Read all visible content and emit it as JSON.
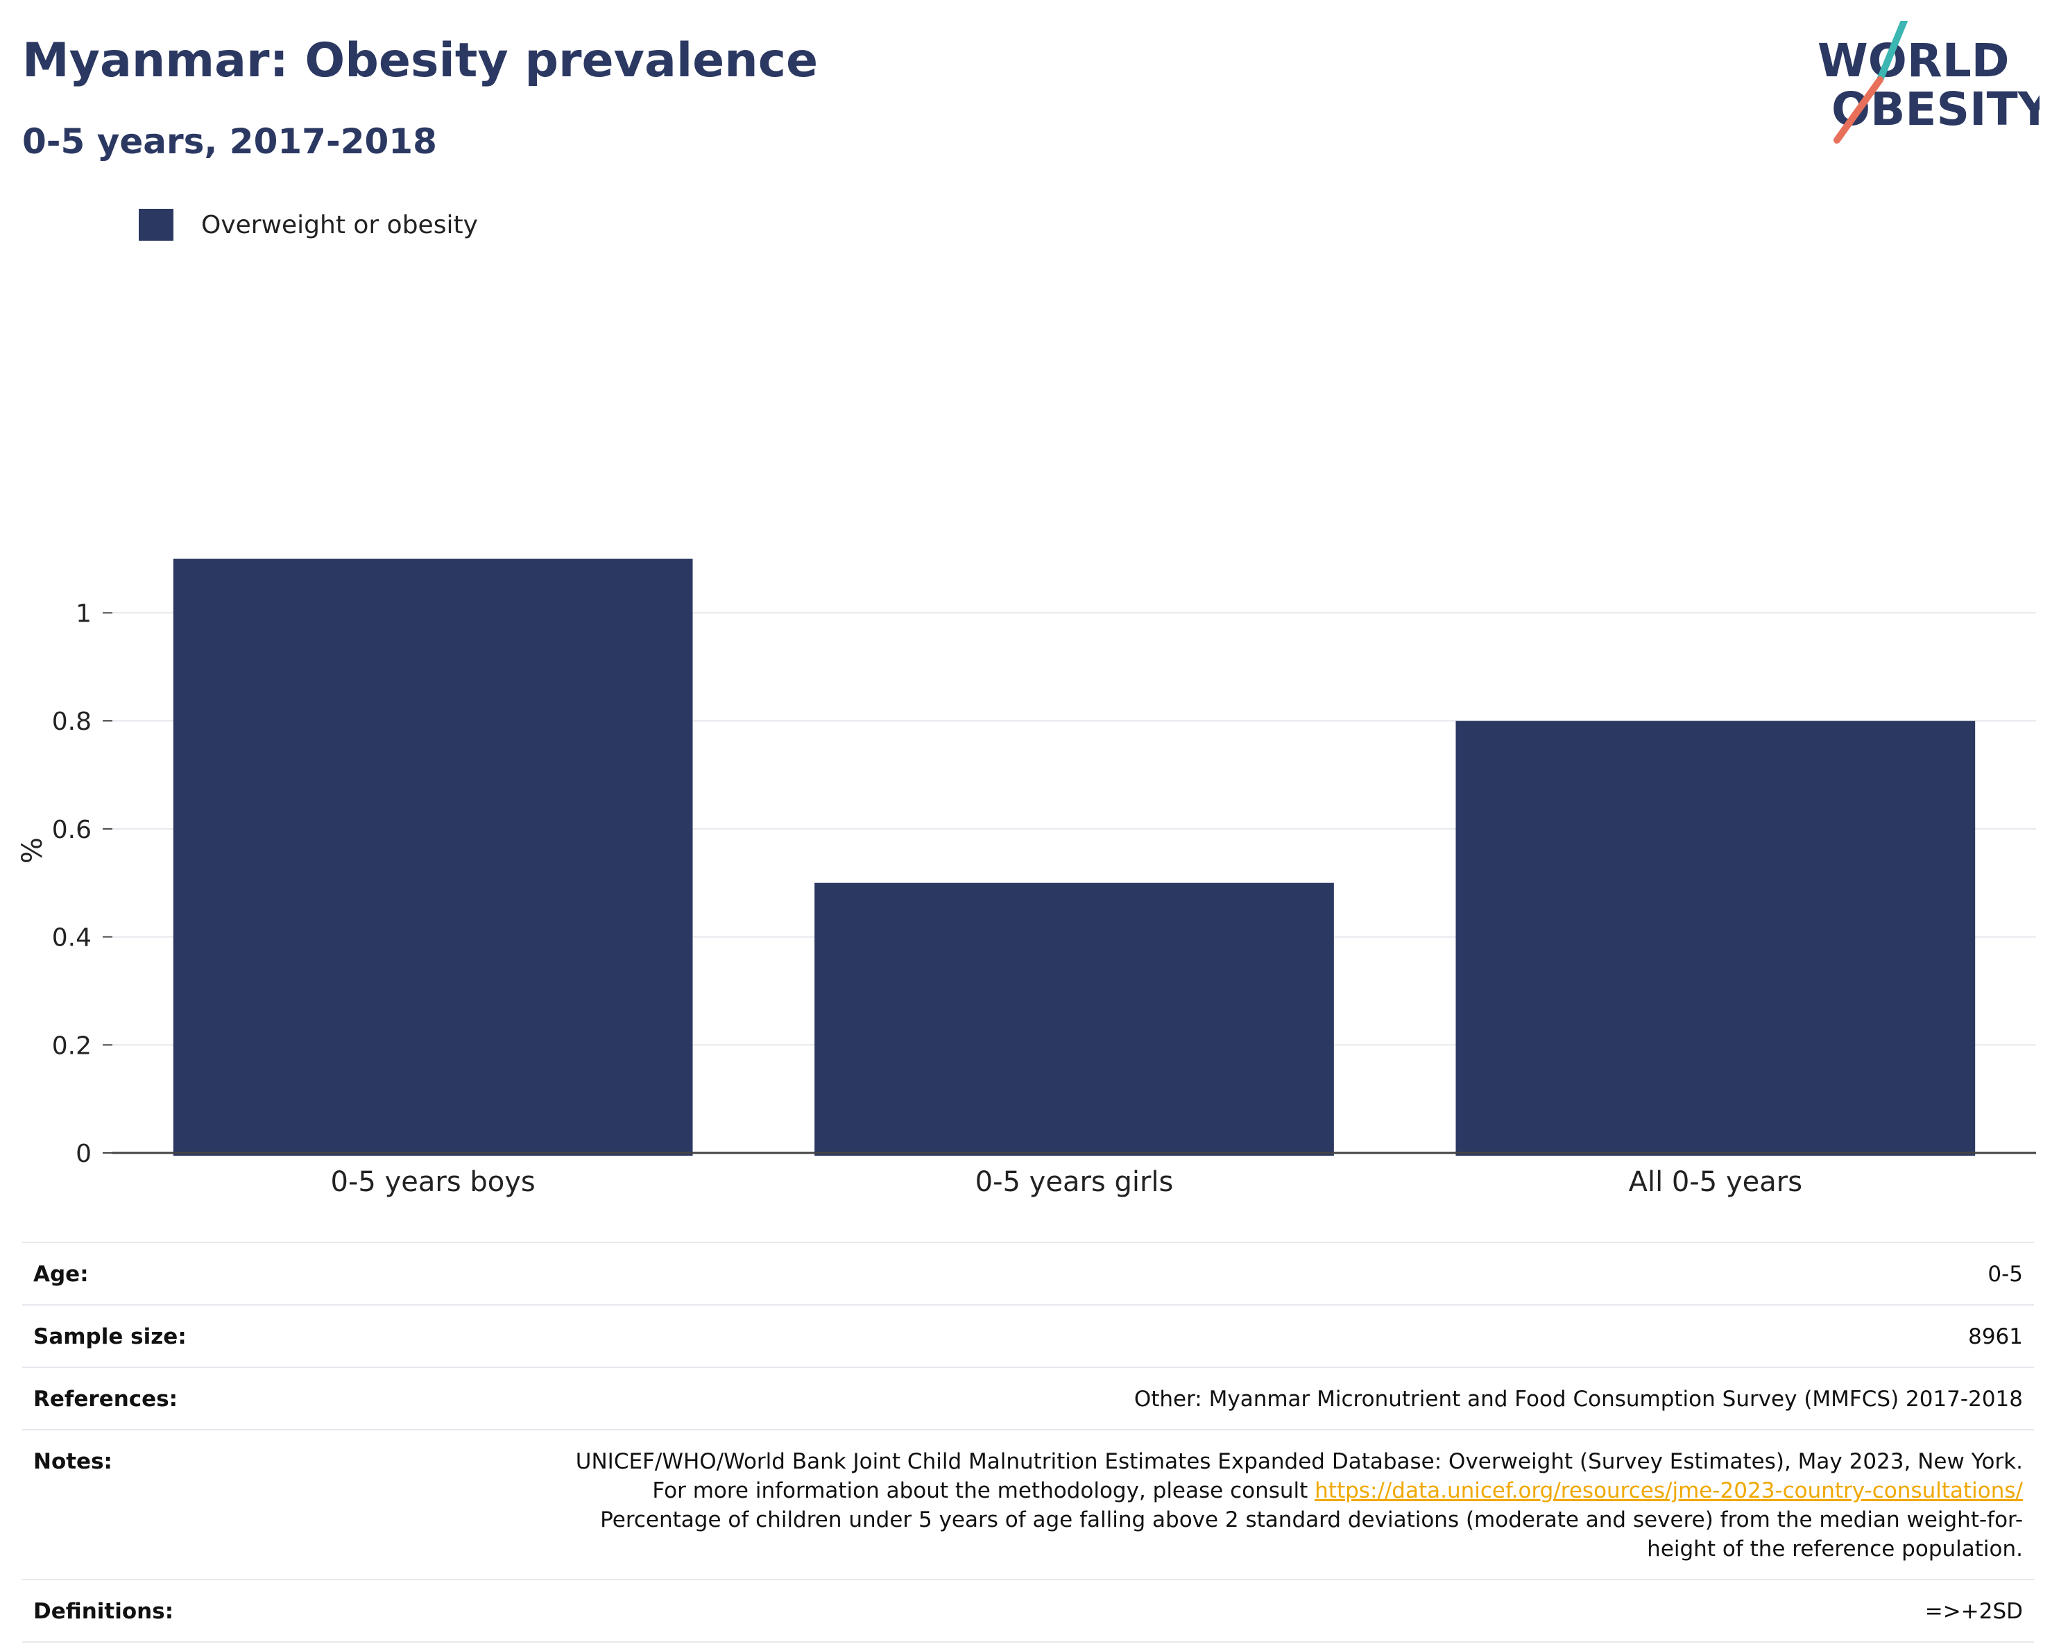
{
  "header": {
    "title": "Myanmar: Obesity prevalence",
    "subtitle": "0-5 years, 2017-2018"
  },
  "logo": {
    "line1": "WORLD",
    "line2": "OBESITY",
    "color": "#2b3862",
    "accent_teal": "#3cb6b2",
    "accent_coral": "#e8705a"
  },
  "colors": {
    "bar": "#2b3862",
    "grid": "#e7e8ee",
    "axis": "#444444"
  },
  "chart_data": {
    "type": "bar",
    "categories": [
      "0-5 years boys",
      "0-5 years girls",
      "All 0-5 years"
    ],
    "series": [
      {
        "name": "Overweight or obesity",
        "values": [
          1.1,
          0.5,
          0.8
        ]
      }
    ],
    "ylabel": "%",
    "ylim": [
      0,
      1.12
    ],
    "yticks": [
      0,
      0.2,
      0.4,
      0.6,
      0.8,
      1
    ],
    "grid": true,
    "legend": "top-left"
  },
  "meta": {
    "rows": [
      {
        "label": "Age:",
        "value": "0-5"
      },
      {
        "label": "Sample size:",
        "value": "8961"
      },
      {
        "label": "References:",
        "value": "Other: Myanmar Micronutrient and Food Consumption Survey (MMFCS) 2017-2018"
      }
    ],
    "notes": {
      "label": "Notes:",
      "text_before": "UNICEF/WHO/World Bank Joint Child Malnutrition Estimates Expanded Database: Overweight (Survey Estimates), May 2023, New York. For more information about the methodology, please consult ",
      "link": "https://data.unicef.org/resources/jme-2023-country-consultations/",
      "text_after": " Percentage of children under 5 years of age falling above 2 standard deviations (moderate and severe) from the median weight-for-height of the reference population."
    },
    "definitions": {
      "label": "Definitions:",
      "value": "=>+2SD"
    }
  }
}
